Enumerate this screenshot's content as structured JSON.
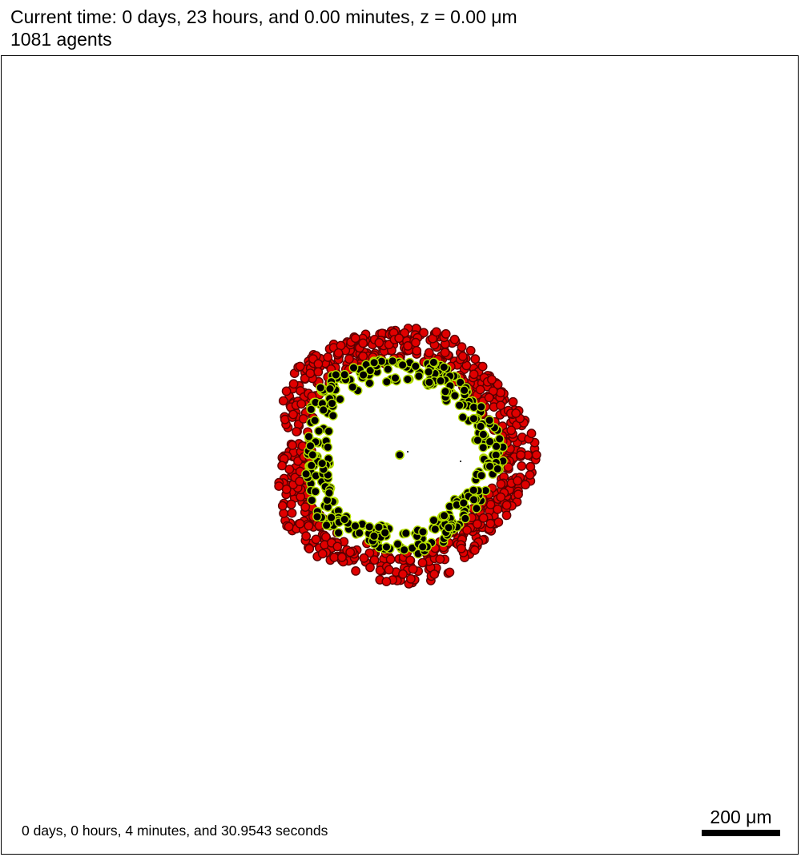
{
  "header": {
    "time_line": "Current time: 0 days, 23 hours, and 0.00 minutes, z = 0.00 μm",
    "agents_line": "1081 agents"
  },
  "footer": {
    "runtime": "0 days, 0 hours, 4 minutes, and 30.9543 seconds",
    "scale_label": "200 μm"
  },
  "colors": {
    "outer_cell_fill": "#e00000",
    "outer_cell_edge": "#5a0000",
    "inner_cell_fill": "#000000",
    "inner_cell_edge": "#b6e000",
    "background": "#ffffff",
    "frame": "#000000"
  },
  "rings": {
    "outer": {
      "label": "red-cells",
      "count": 720
    },
    "inner": {
      "label": "green-cells",
      "count": 360
    },
    "center": {
      "count": 1
    }
  }
}
